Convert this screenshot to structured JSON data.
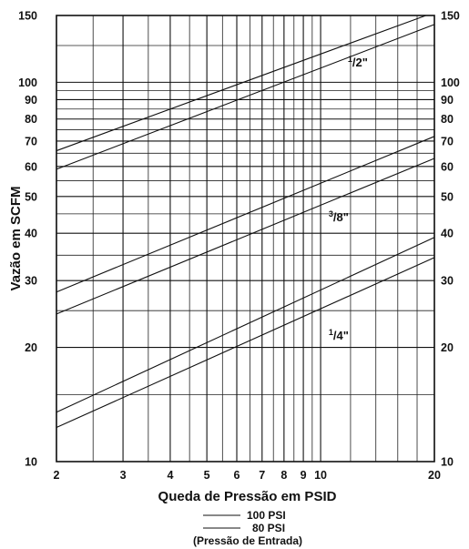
{
  "chart_data": {
    "type": "line",
    "title": "",
    "xlabel": "Queda de Pressão em PSID",
    "ylabel": "Vazão em SCFM",
    "xscale": "log",
    "yscale": "log",
    "xlim": [
      2,
      20
    ],
    "ylim": [
      10,
      150
    ],
    "grid": true,
    "xticks": [
      2,
      3,
      4,
      5,
      6,
      7,
      8,
      9,
      10,
      20
    ],
    "yticks": [
      10,
      20,
      30,
      40,
      50,
      60,
      70,
      80,
      90,
      100,
      150
    ],
    "ytick_labels_right": true,
    "x_minor_gridlines": [
      2.5,
      3.5,
      4.5,
      5.5,
      6.5,
      7.5,
      8.5,
      9.5,
      12,
      14,
      16,
      18
    ],
    "y_minor_gridlines": [
      15,
      25,
      35,
      45,
      55,
      65,
      75,
      85,
      95,
      125
    ],
    "legend": {
      "placement": "bottom",
      "entries": [
        "100 PSI",
        "80 PSI"
      ],
      "caption": "(Pressão de Entrada)"
    },
    "curve_labels": [
      {
        "sup": "1",
        "rest": "/2\"",
        "x": 11.8,
        "y": 110
      },
      {
        "sup": "3",
        "rest": "/8\"",
        "x": 10.5,
        "y": 43
      },
      {
        "sup": "1",
        "rest": "/4\"",
        "x": 10.5,
        "y": 21
      }
    ],
    "series": [
      {
        "group": "1/2\"",
        "legend": "100 PSI",
        "x": [
          2,
          19
        ],
        "y": [
          66,
          150
        ]
      },
      {
        "group": "1/2\"",
        "legend": "80 PSI",
        "x": [
          2,
          20
        ],
        "y": [
          59,
          142
        ]
      },
      {
        "group": "3/8\"",
        "legend": "100 PSI",
        "x": [
          2,
          20
        ],
        "y": [
          28,
          72
        ]
      },
      {
        "group": "3/8\"",
        "legend": "80 PSI",
        "x": [
          2,
          20
        ],
        "y": [
          24.5,
          63
        ]
      },
      {
        "group": "1/4\"",
        "legend": "100 PSI",
        "x": [
          2,
          20
        ],
        "y": [
          13.5,
          39
        ]
      },
      {
        "group": "1/4\"",
        "legend": "80 PSI",
        "x": [
          2,
          20
        ],
        "y": [
          12.3,
          34.5
        ]
      }
    ]
  }
}
